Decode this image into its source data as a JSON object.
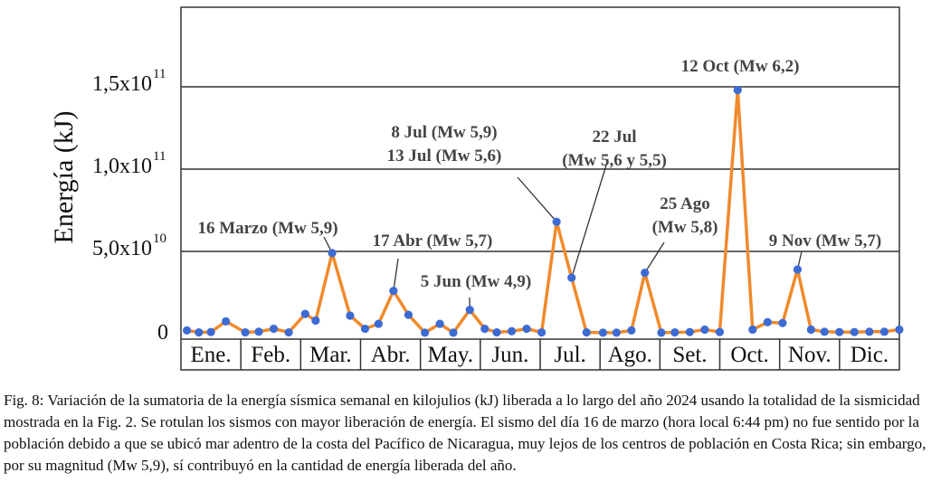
{
  "chart_data": {
    "type": "line",
    "ylabel": "Energía (kJ)",
    "ylim": [
      0,
      200000000000
    ],
    "yticks": [
      {
        "value": 0,
        "mantissa": "0",
        "exponent": ""
      },
      {
        "value": 50000000000,
        "mantissa": "5,0x10",
        "exponent": "10"
      },
      {
        "value": 100000000000,
        "mantissa": "1,0x10",
        "exponent": "11"
      },
      {
        "value": 150000000000,
        "mantissa": "1,5x10",
        "exponent": "11"
      }
    ],
    "grid": true,
    "months": [
      "Ene.",
      "Feb.",
      "Mar.",
      "Abr.",
      "May.",
      "Jun.",
      "Jul.",
      "Ago.",
      "Set.",
      "Oct.",
      "Nov.",
      "Dic."
    ],
    "series": [
      {
        "color": "#f08a2c",
        "marker_color": "#3d6bd4",
        "points": [
          [
            0.4,
            2000000000
          ],
          [
            1.2,
            800000000
          ],
          [
            2.0,
            1000000000
          ],
          [
            3.0,
            7500000000
          ],
          [
            4.3,
            800000000
          ],
          [
            5.2,
            1200000000
          ],
          [
            6.2,
            3000000000
          ],
          [
            7.2,
            800000000
          ],
          [
            8.3,
            12000000000
          ],
          [
            9.0,
            8000000000
          ],
          [
            10.1,
            49000000000
          ],
          [
            11.3,
            11000000000
          ],
          [
            12.3,
            3000000000
          ],
          [
            13.2,
            6000000000
          ],
          [
            14.2,
            26000000000
          ],
          [
            15.2,
            11500000000
          ],
          [
            16.3,
            600000000
          ],
          [
            17.3,
            6000000000
          ],
          [
            18.2,
            600000000
          ],
          [
            19.3,
            14500000000
          ],
          [
            20.3,
            3000000000
          ],
          [
            21.1,
            800000000
          ],
          [
            22.1,
            1500000000
          ],
          [
            23.1,
            3000000000
          ],
          [
            24.1,
            800000000
          ],
          [
            25.1,
            68000000000
          ],
          [
            26.1,
            34000000000
          ],
          [
            27.1,
            800000000
          ],
          [
            28.2,
            600000000
          ],
          [
            29.1,
            600000000
          ],
          [
            30.1,
            2000000000
          ],
          [
            31.0,
            37000000000
          ],
          [
            32.1,
            600000000
          ],
          [
            33.0,
            800000000
          ],
          [
            34.0,
            1000000000
          ],
          [
            35.0,
            2500000000
          ],
          [
            36.0,
            1000000000
          ],
          [
            37.2,
            148000000000
          ],
          [
            38.2,
            2500000000
          ],
          [
            39.2,
            7000000000
          ],
          [
            40.2,
            6500000000
          ],
          [
            41.2,
            39000000000
          ],
          [
            42.1,
            2500000000
          ],
          [
            43.0,
            1200000000
          ],
          [
            44.0,
            1000000000
          ],
          [
            45.0,
            1000000000
          ],
          [
            46.0,
            1200000000
          ],
          [
            47.0,
            1200000000
          ],
          [
            48.0,
            2500000000
          ]
        ]
      }
    ],
    "annotations": [
      {
        "lines": [
          "16 Marzo (Mw 5,9)"
        ],
        "target": 10
      },
      {
        "lines": [
          "17 Abr (Mw 5,7)"
        ],
        "target": 14
      },
      {
        "lines": [
          "5 Jun (Mw 4,9)"
        ],
        "target": 19
      },
      {
        "lines": [
          "8 Jul (Mw 5,9)",
          "13 Jul (Mw 5,6)"
        ],
        "target": 25
      },
      {
        "lines": [
          "22 Jul",
          "(Mw 5,6 y 5,5)"
        ],
        "target": 26
      },
      {
        "lines": [
          "25 Ago",
          "(Mw 5,8)"
        ],
        "target": 31
      },
      {
        "lines": [
          "12 Oct (Mw 6,2)"
        ],
        "target": 37
      },
      {
        "lines": [
          "9 Nov (Mw 5,7)"
        ],
        "target": 41
      }
    ]
  },
  "caption": "Fig. 8: Variación de la sumatoria de la energía sísmica semanal en kilojulios (kJ) liberada a lo largo del año 2024 usando la totalidad de la sismicidad mostrada en la Fig. 2. Se rotulan los sismos con mayor liberación de energía. El sismo del día 16 de marzo (hora local 6:44 pm) no fue sentido por la población debido a que se ubicó mar adentro de la costa del Pacífico de Nicaragua, muy lejos de los centros de población en Costa Rica; sin embargo, por su magnitud (Mw 5,9), sí contribuyó en la cantidad de energía liberada del año."
}
